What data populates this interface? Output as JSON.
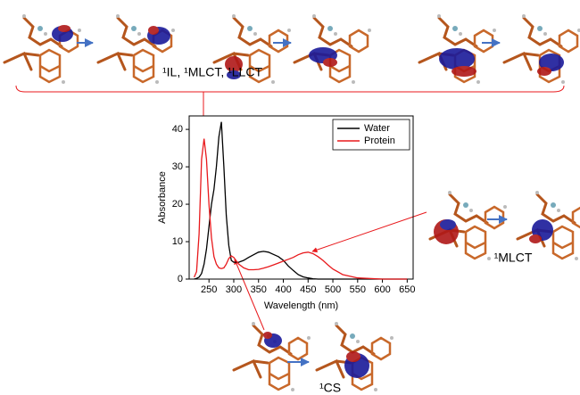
{
  "chart_data": {
    "type": "line",
    "x_label": "Wavelength (nm)",
    "y_label": "Absorbance",
    "x": [
      220,
      225,
      230,
      235,
      240,
      245,
      250,
      255,
      260,
      265,
      270,
      275,
      280,
      285,
      290,
      295,
      300,
      310,
      320,
      330,
      340,
      350,
      360,
      370,
      380,
      390,
      400,
      410,
      420,
      430,
      440,
      450,
      460,
      470,
      480,
      490,
      500,
      520,
      550,
      600,
      650
    ],
    "series": [
      {
        "name": "Water",
        "color": "#000000",
        "values": [
          0,
          0.2,
          0.5,
          1.5,
          4,
          8,
          14,
          20,
          24,
          30,
          38,
          42,
          30,
          17,
          9,
          5,
          4.5,
          4.5,
          5,
          5.8,
          6.5,
          7.2,
          7.4,
          7.2,
          6.6,
          6,
          5,
          3.5,
          2.3,
          1.2,
          0.6,
          0.3,
          0.1,
          0,
          0,
          0,
          0,
          0,
          0,
          0,
          0
        ]
      },
      {
        "name": "Protein",
        "color": "#e8191c",
        "values": [
          0.5,
          2,
          12,
          32,
          37.5,
          32,
          20,
          11,
          6,
          4,
          3,
          2.8,
          3,
          4,
          5.5,
          6.2,
          5.8,
          4,
          3,
          2.5,
          2.5,
          2.6,
          2.9,
          3.3,
          3.8,
          4.3,
          4.8,
          5.3,
          5.8,
          6.5,
          7,
          7.2,
          6.8,
          6,
          5,
          3.8,
          2.7,
          1.2,
          0.3,
          0,
          0
        ]
      }
    ],
    "xlim": [
      210,
      662
    ],
    "ylim": [
      0,
      43.6
    ],
    "xticks": [
      250,
      300,
      350,
      400,
      450,
      500,
      550,
      600,
      650
    ],
    "yticks": [
      0,
      10,
      20,
      30,
      40
    ],
    "legend": "top-right",
    "annotations": {
      "top": "¹IL, ¹MLCT, ¹LLCT",
      "right": "¹MLCT",
      "bottom": "¹CS"
    }
  }
}
